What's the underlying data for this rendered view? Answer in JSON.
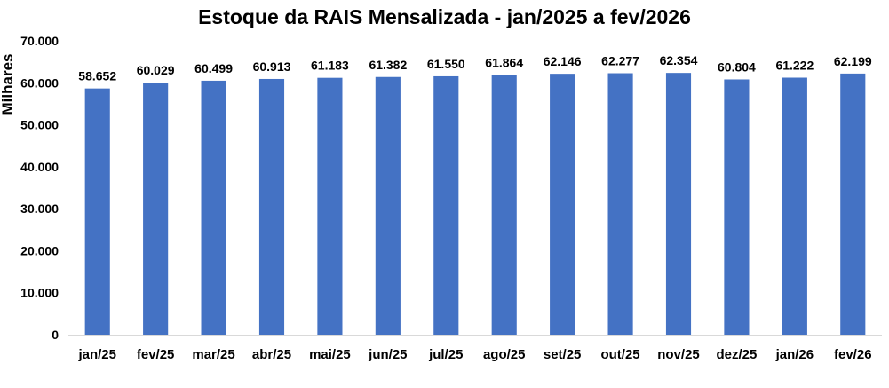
{
  "chart_data": {
    "type": "bar",
    "title": "Estoque da RAIS Mensalizada - jan/2025 a fev/2026",
    "xlabel": "",
    "ylabel": "Milhares",
    "categories": [
      "jan/25",
      "fev/25",
      "mar/25",
      "abr/25",
      "mai/25",
      "jun/25",
      "jul/25",
      "ago/25",
      "set/25",
      "out/25",
      "nov/25",
      "dez/25",
      "jan/26",
      "fev/26"
    ],
    "values": [
      58652,
      60029,
      60499,
      60913,
      61183,
      61382,
      61550,
      61864,
      62146,
      62277,
      62354,
      60804,
      61222,
      62199
    ],
    "value_labels": [
      "58.652",
      "60.029",
      "60.499",
      "60.913",
      "61.183",
      "61.382",
      "61.550",
      "61.864",
      "62.146",
      "62.277",
      "62.354",
      "60.804",
      "61.222",
      "62.199"
    ],
    "ylim": [
      0,
      70000
    ],
    "yticks": [
      0,
      10000,
      20000,
      30000,
      40000,
      50000,
      60000,
      70000
    ],
    "ytick_labels": [
      "0",
      "10.000",
      "20.000",
      "30.000",
      "40.000",
      "50.000",
      "60.000",
      "70.000"
    ],
    "grid": false,
    "legend": "none",
    "bar_color": "#4472C4"
  }
}
